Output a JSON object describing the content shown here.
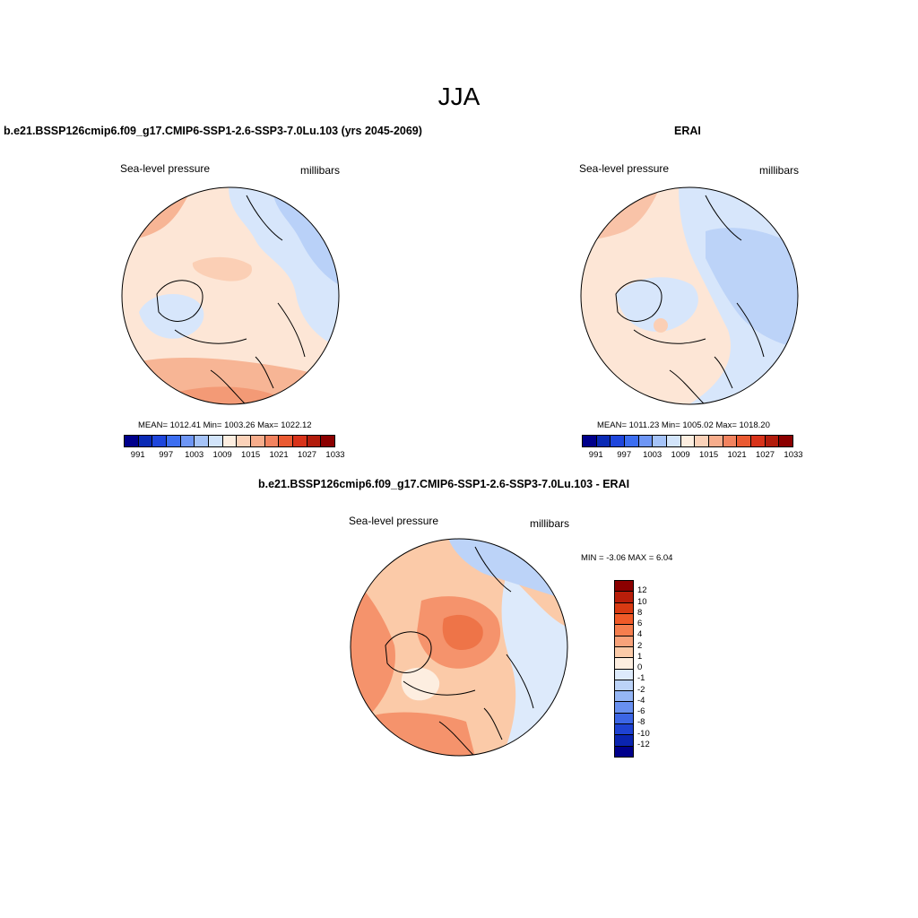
{
  "title": "JJA",
  "panel_model": {
    "case_title": "b.e21.BSSP126cmip6.f09_g17.CMIP6-SSP1-2.6-SSP3-7.0Lu.103 (yrs 2045-2069)",
    "variable": "Sea-level pressure",
    "units": "millibars",
    "stats": "MEAN= 1012.41  Min= 1003.26  Max= 1022.12"
  },
  "panel_obs": {
    "case_title": "ERAI",
    "variable": "Sea-level pressure",
    "units": "millibars",
    "stats": "MEAN= 1011.23  Min= 1005.02  Max= 1018.20"
  },
  "panel_diff": {
    "case_title": "b.e21.BSSP126cmip6.f09_g17.CMIP6-SSP1-2.6-SSP3-7.0Lu.103 - ERAI",
    "variable": "Sea-level pressure",
    "units": "millibars",
    "minmax": "MIN =  -3.06 MAX =   6.04"
  },
  "colorbar_abs": {
    "colors": [
      "#00008b",
      "#0a2ab5",
      "#1e46dc",
      "#3c6ef0",
      "#6e96f5",
      "#a5c3f8",
      "#d2e4fa",
      "#fdeee0",
      "#fbd2b9",
      "#f7ad8c",
      "#f2835f",
      "#ea5a32",
      "#d8331a",
      "#b21c0c",
      "#8b0000"
    ],
    "labels": [
      "991",
      "997",
      "1003",
      "1009",
      "1015",
      "1021",
      "1027",
      "1033"
    ]
  },
  "colorbar_diff": {
    "colors": [
      "#8b0000",
      "#b81e0a",
      "#d83a12",
      "#f05a28",
      "#f57e4e",
      "#f8a27a",
      "#fbcaa8",
      "#fdeee0",
      "#ddeafb",
      "#bcd3f8",
      "#95b6f5",
      "#6890f0",
      "#3c66e6",
      "#1e42d2",
      "#0a24b0",
      "#00008b"
    ],
    "labels": [
      "12",
      "10",
      "8",
      "6",
      "4",
      "2",
      "1",
      "0",
      "-1",
      "-2",
      "-4",
      "-6",
      "-8",
      "-10",
      "-12"
    ]
  },
  "maps": {
    "model": {
      "background": "#fde6d6",
      "regions": [
        {
          "color": "#d7e6fb",
          "shape": "northeast"
        },
        {
          "color": "#b9d1f8",
          "shape": "far-northeast"
        },
        {
          "color": "#f7b595",
          "shape": "northwest"
        },
        {
          "color": "#f39a76",
          "shape": "south"
        },
        {
          "color": "#d7e6fb",
          "shape": "west-lobe"
        },
        {
          "color": "#fbcfb5",
          "shape": "center-ridge"
        }
      ]
    },
    "obs": {
      "background": "#fde6d6",
      "regions": [
        {
          "color": "#d7e6fb",
          "shape": "east-large"
        },
        {
          "color": "#bcd3f8",
          "shape": "far-east"
        },
        {
          "color": "#f9c3a8",
          "shape": "northwest"
        },
        {
          "color": "#d7e6fb",
          "shape": "center"
        },
        {
          "color": "#fbcfb5",
          "shape": "greenland-dot"
        }
      ]
    },
    "diff": {
      "background": "#fbcaa8",
      "regions": [
        {
          "color": "#f5936c",
          "shape": "west"
        },
        {
          "color": "#f5936c",
          "shape": "center-high"
        },
        {
          "color": "#ee7448",
          "shape": "center-core"
        },
        {
          "color": "#f5936c",
          "shape": "south"
        },
        {
          "color": "#ddeafb",
          "shape": "east"
        },
        {
          "color": "#bcd3f8",
          "shape": "northeast"
        },
        {
          "color": "#fdeee0",
          "shape": "patch"
        }
      ]
    }
  }
}
